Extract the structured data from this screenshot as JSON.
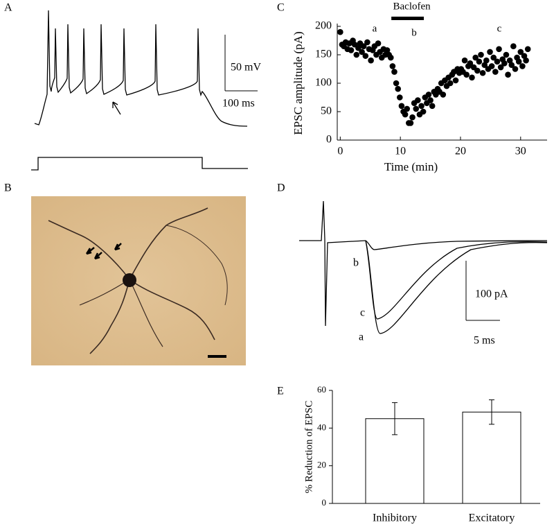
{
  "panels": {
    "A": {
      "label": "A",
      "scale_y": "50 mV",
      "scale_x": "100 ms"
    },
    "B": {
      "label": "B"
    },
    "C": {
      "label": "C"
    },
    "D": {
      "label": "D",
      "scale_y": "100 pA",
      "scale_x": "5 ms",
      "trace_labels": [
        "b",
        "c",
        "a"
      ]
    },
    "E": {
      "label": "E"
    }
  },
  "chart_data": [
    {
      "type": "scatter",
      "x_label": "Time (min)",
      "y_label": "EPSC amplitude (pA)",
      "drug": "Baclofen",
      "drug_span": [
        8.5,
        13.9
      ],
      "annotations": [
        "a",
        "b",
        "c"
      ],
      "color": "#000000",
      "x": [
        0,
        0.3,
        0.6,
        0.9,
        1.2,
        1.5,
        1.8,
        2.1,
        2.4,
        2.7,
        3,
        3.3,
        3.6,
        3.9,
        4.2,
        4.5,
        4.8,
        5.1,
        5.4,
        5.7,
        6,
        6.3,
        6.6,
        6.9,
        7.2,
        7.5,
        7.8,
        8.1,
        8.4,
        8.7,
        9,
        9.3,
        9.6,
        9.9,
        10.2,
        10.5,
        10.8,
        11.1,
        11.4,
        11.7,
        12,
        12.3,
        12.6,
        12.9,
        13.2,
        13.5,
        13.8,
        14.1,
        14.4,
        14.7,
        15,
        15.3,
        15.6,
        15.9,
        16.2,
        16.5,
        16.8,
        17.1,
        17.4,
        17.7,
        18,
        18.3,
        18.6,
        18.9,
        19.2,
        19.5,
        19.8,
        20.1,
        20.4,
        20.7,
        21,
        21.3,
        21.6,
        21.9,
        22.2,
        22.5,
        22.8,
        23.1,
        23.4,
        23.7,
        24,
        24.3,
        24.6,
        24.9,
        25.2,
        25.5,
        25.8,
        26.1,
        26.4,
        26.7,
        27,
        27.3,
        27.6,
        27.9,
        28.2,
        28.5,
        28.8,
        29.1,
        29.4,
        29.7,
        30,
        30.3,
        30.6,
        30.9,
        31.2
      ],
      "values": [
        190,
        168,
        165,
        172,
        160,
        170,
        158,
        175,
        168,
        150,
        162,
        170,
        155,
        165,
        148,
        172,
        160,
        140,
        158,
        165,
        150,
        170,
        155,
        145,
        160,
        150,
        158,
        150,
        145,
        130,
        120,
        100,
        90,
        75,
        60,
        50,
        45,
        55,
        30,
        30,
        40,
        65,
        55,
        70,
        45,
        60,
        50,
        75,
        65,
        80,
        70,
        60,
        85,
        80,
        90,
        85,
        100,
        80,
        105,
        95,
        110,
        100,
        115,
        120,
        105,
        125,
        118,
        125,
        120,
        140,
        115,
        130,
        135,
        110,
        128,
        145,
        122,
        138,
        150,
        118,
        132,
        140,
        125,
        155,
        130,
        145,
        120,
        138,
        160,
        128,
        142,
        135,
        150,
        115,
        140,
        132,
        165,
        125,
        145,
        138,
        155,
        130,
        148,
        140,
        160
      ],
      "xlim": [
        -0.5,
        34.4
      ],
      "xticks": [
        0,
        10,
        20,
        30
      ],
      "ylim": [
        0,
        200
      ],
      "yticks": [
        0,
        50,
        100,
        150,
        200
      ]
    },
    {
      "type": "bar",
      "y_label": "% Reduction of EPSC",
      "color": "#ffffff",
      "categories": [
        "Inhibitory",
        "Excitatory"
      ],
      "values": [
        45,
        48.5
      ],
      "errors": [
        8.5,
        6.5
      ],
      "ylim": [
        0,
        60
      ],
      "yticks": [
        0,
        20,
        40,
        60
      ]
    }
  ]
}
